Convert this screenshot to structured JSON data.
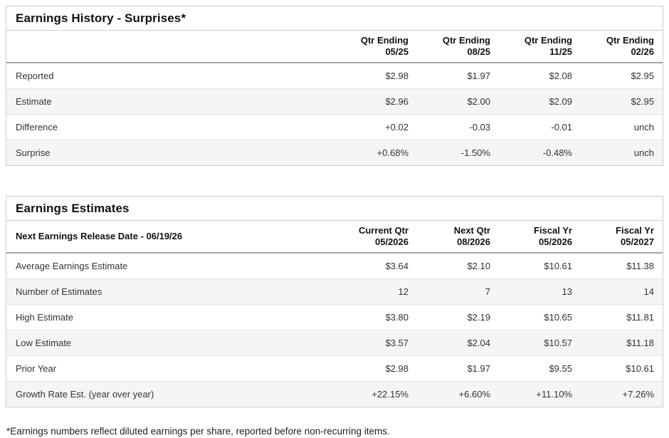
{
  "colors": {
    "positive_text": "#2c9274",
    "negative_text": "#d04c4c",
    "row_alt_background": "#f5f5f5",
    "table_border": "#cccccc",
    "header_underline": "#a6a6a6",
    "body_text": "#333333",
    "title_text": "#111111"
  },
  "tables": [
    {
      "title": "Earnings History - Surprises*",
      "corner_label": "",
      "columns": [
        {
          "line1": "Qtr Ending",
          "line2": "05/25"
        },
        {
          "line1": "Qtr Ending",
          "line2": "08/25"
        },
        {
          "line1": "Qtr Ending",
          "line2": "11/25"
        },
        {
          "line1": "Qtr Ending",
          "line2": "02/26"
        }
      ],
      "rows": [
        {
          "label": "Reported",
          "values": [
            {
              "text": "$2.98",
              "tone": "default"
            },
            {
              "text": "$1.97",
              "tone": "default"
            },
            {
              "text": "$2.08",
              "tone": "default"
            },
            {
              "text": "$2.95",
              "tone": "default"
            }
          ]
        },
        {
          "label": "Estimate",
          "values": [
            {
              "text": "$2.96",
              "tone": "default"
            },
            {
              "text": "$2.00",
              "tone": "default"
            },
            {
              "text": "$2.09",
              "tone": "default"
            },
            {
              "text": "$2.95",
              "tone": "default"
            }
          ]
        },
        {
          "label": "Difference",
          "values": [
            {
              "text": "+0.02",
              "tone": "positive"
            },
            {
              "text": "-0.03",
              "tone": "negative"
            },
            {
              "text": "-0.01",
              "tone": "negative"
            },
            {
              "text": "unch",
              "tone": "positive"
            }
          ]
        },
        {
          "label": "Surprise",
          "values": [
            {
              "text": "+0.68%",
              "tone": "positive"
            },
            {
              "text": "-1.50%",
              "tone": "negative"
            },
            {
              "text": "-0.48%",
              "tone": "negative"
            },
            {
              "text": "unch",
              "tone": "positive"
            }
          ]
        }
      ]
    },
    {
      "title": "Earnings Estimates",
      "corner_label": "Next Earnings Release Date - 06/19/26",
      "columns": [
        {
          "line1": "Current Qtr",
          "line2": "05/2026"
        },
        {
          "line1": "Next Qtr",
          "line2": "08/2026"
        },
        {
          "line1": "Fiscal Yr",
          "line2": "05/2026"
        },
        {
          "line1": "Fiscal Yr",
          "line2": "05/2027"
        }
      ],
      "rows": [
        {
          "label": "Average Earnings Estimate",
          "values": [
            {
              "text": "$3.64",
              "tone": "default"
            },
            {
              "text": "$2.10",
              "tone": "default"
            },
            {
              "text": "$10.61",
              "tone": "default"
            },
            {
              "text": "$11.38",
              "tone": "default"
            }
          ]
        },
        {
          "label": "Number of Estimates",
          "values": [
            {
              "text": "12",
              "tone": "default"
            },
            {
              "text": "7",
              "tone": "default"
            },
            {
              "text": "13",
              "tone": "default"
            },
            {
              "text": "14",
              "tone": "default"
            }
          ]
        },
        {
          "label": "High Estimate",
          "values": [
            {
              "text": "$3.80",
              "tone": "default"
            },
            {
              "text": "$2.19",
              "tone": "default"
            },
            {
              "text": "$10.65",
              "tone": "default"
            },
            {
              "text": "$11.81",
              "tone": "default"
            }
          ]
        },
        {
          "label": "Low Estimate",
          "values": [
            {
              "text": "$3.57",
              "tone": "default"
            },
            {
              "text": "$2.04",
              "tone": "default"
            },
            {
              "text": "$10.57",
              "tone": "default"
            },
            {
              "text": "$11.18",
              "tone": "default"
            }
          ]
        },
        {
          "label": "Prior Year",
          "values": [
            {
              "text": "$2.98",
              "tone": "default"
            },
            {
              "text": "$1.97",
              "tone": "default"
            },
            {
              "text": "$9.55",
              "tone": "default"
            },
            {
              "text": "$10.61",
              "tone": "default"
            }
          ]
        },
        {
          "label": "Growth Rate Est. (year over year)",
          "values": [
            {
              "text": "+22.15%",
              "tone": "positive"
            },
            {
              "text": "+6.60%",
              "tone": "positive"
            },
            {
              "text": "+11.10%",
              "tone": "positive"
            },
            {
              "text": "+7.26%",
              "tone": "positive"
            }
          ]
        }
      ]
    }
  ],
  "footnote": "*Earnings numbers reflect diluted earnings per share, reported before non-recurring items."
}
